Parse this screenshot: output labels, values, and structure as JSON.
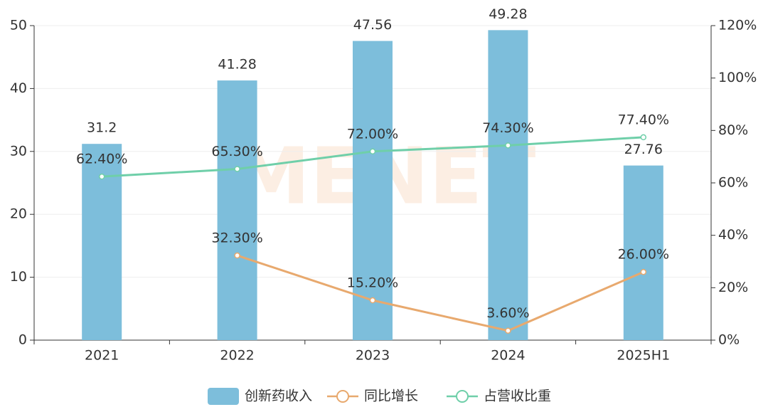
{
  "chart_data": {
    "type": "bar",
    "categories": [
      "2021",
      "2022",
      "2023",
      "2024",
      "2025H1"
    ],
    "series": [
      {
        "name": "创新药收入",
        "type": "bar",
        "color": "#7dbedb",
        "values": [
          31.2,
          41.28,
          47.56,
          49.28,
          27.76
        ]
      },
      {
        "name": "同比增长",
        "type": "line",
        "axis": "y2",
        "color": "#e8a96e",
        "values": [
          null,
          32.3,
          15.2,
          3.6,
          26.0
        ],
        "value_labels": [
          null,
          "32.30%",
          "15.20%",
          "3.60%",
          "26.00%"
        ]
      },
      {
        "name": "占营收比重",
        "type": "line",
        "axis": "y2",
        "color": "#6fcfa9",
        "values": [
          62.4,
          65.3,
          72.0,
          74.3,
          77.4
        ],
        "value_labels": [
          "62.40%",
          "65.30%",
          "72.00%",
          "74.30%",
          "77.40%"
        ]
      }
    ],
    "ylim": [
      0,
      50
    ],
    "yticks": [
      0,
      10,
      20,
      30,
      40,
      50
    ],
    "y2lim": [
      0,
      120
    ],
    "y2ticks": [
      {
        "value": 0,
        "label": "0%"
      },
      {
        "value": 20,
        "label": "20%"
      },
      {
        "value": 40,
        "label": "40%"
      },
      {
        "value": 60,
        "label": "60%"
      },
      {
        "value": 80,
        "label": "80%"
      },
      {
        "value": 100,
        "label": "100%"
      },
      {
        "value": 120,
        "label": "120%"
      }
    ],
    "grid": true,
    "legend": "bottom",
    "watermark": "MENET"
  }
}
